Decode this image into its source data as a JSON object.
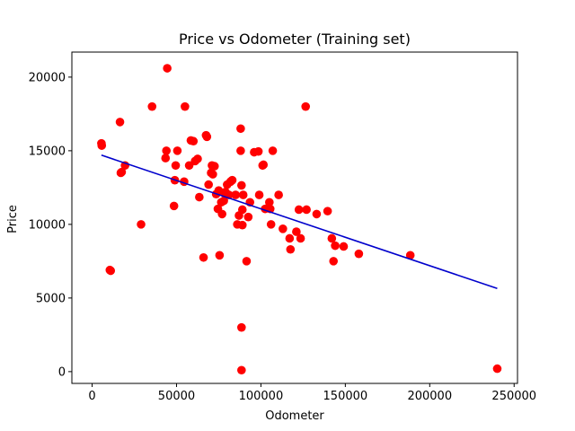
{
  "chart_data": {
    "type": "scatter",
    "title": "Price vs Odometer (Training set)",
    "xlabel": "Odometer",
    "ylabel": "Price",
    "xlim": [
      -12000,
      252000
    ],
    "ylim": [
      -800,
      21700
    ],
    "xticks": [
      0,
      50000,
      100000,
      150000,
      200000,
      250000
    ],
    "yticks": [
      0,
      5000,
      10000,
      15000,
      20000
    ],
    "grid": false,
    "legend": "none",
    "colors": {
      "points": "#ff0000",
      "line": "#0000cc"
    },
    "series": [
      {
        "kind": "scatter",
        "points": [
          [
            5500,
            15500
          ],
          [
            5700,
            15350
          ],
          [
            10500,
            6900
          ],
          [
            11000,
            6850
          ],
          [
            16500,
            16950
          ],
          [
            17000,
            13500
          ],
          [
            17500,
            13550
          ],
          [
            19500,
            14000
          ],
          [
            29000,
            10000
          ],
          [
            35500,
            18000
          ],
          [
            43500,
            14500
          ],
          [
            44000,
            15000
          ],
          [
            44500,
            20600
          ],
          [
            48500,
            11250
          ],
          [
            49000,
            13000
          ],
          [
            49500,
            14000
          ],
          [
            50500,
            15000
          ],
          [
            54500,
            12900
          ],
          [
            55000,
            18000
          ],
          [
            57500,
            14000
          ],
          [
            58500,
            15700
          ],
          [
            60000,
            15650
          ],
          [
            61000,
            14300
          ],
          [
            62500,
            14450
          ],
          [
            63500,
            11850
          ],
          [
            66000,
            7750
          ],
          [
            67500,
            16050
          ],
          [
            68000,
            15950
          ],
          [
            69000,
            12700
          ],
          [
            70500,
            13500
          ],
          [
            71000,
            14000
          ],
          [
            71500,
            13400
          ],
          [
            72500,
            13950
          ],
          [
            73500,
            12050
          ],
          [
            74500,
            11050
          ],
          [
            75000,
            12300
          ],
          [
            75500,
            7900
          ],
          [
            76500,
            11500
          ],
          [
            77000,
            10700
          ],
          [
            78000,
            11600
          ],
          [
            78500,
            12100
          ],
          [
            79000,
            12200
          ],
          [
            80000,
            12700
          ],
          [
            81000,
            12000
          ],
          [
            82000,
            12900
          ],
          [
            83000,
            13000
          ],
          [
            85000,
            12000
          ],
          [
            86000,
            10000
          ],
          [
            87000,
            10600
          ],
          [
            88000,
            16500
          ],
          [
            88000,
            15000
          ],
          [
            88500,
            12650
          ],
          [
            89000,
            11000
          ],
          [
            89000,
            9950
          ],
          [
            89500,
            12000
          ],
          [
            88500,
            3000
          ],
          [
            88500,
            100
          ],
          [
            91500,
            7500
          ],
          [
            92500,
            10500
          ],
          [
            93500,
            11500
          ],
          [
            96000,
            14900
          ],
          [
            98500,
            14950
          ],
          [
            99000,
            12000
          ],
          [
            101000,
            14000
          ],
          [
            101500,
            14050
          ],
          [
            102500,
            11050
          ],
          [
            104000,
            11100
          ],
          [
            105000,
            11500
          ],
          [
            105500,
            11050
          ],
          [
            106000,
            10000
          ],
          [
            107000,
            15000
          ],
          [
            110500,
            12000
          ],
          [
            113000,
            9700
          ],
          [
            117000,
            9050
          ],
          [
            117500,
            8300
          ],
          [
            121000,
            9500
          ],
          [
            122500,
            11000
          ],
          [
            123500,
            9050
          ],
          [
            126500,
            18000
          ],
          [
            127000,
            11000
          ],
          [
            133000,
            10700
          ],
          [
            139500,
            10900
          ],
          [
            142000,
            9050
          ],
          [
            143000,
            7500
          ],
          [
            144000,
            8550
          ],
          [
            149000,
            8500
          ],
          [
            158000,
            8000
          ],
          [
            188500,
            7900
          ],
          [
            240000,
            200
          ]
        ]
      },
      {
        "kind": "line",
        "points": [
          [
            5500,
            14700
          ],
          [
            240000,
            5650
          ]
        ]
      }
    ]
  }
}
